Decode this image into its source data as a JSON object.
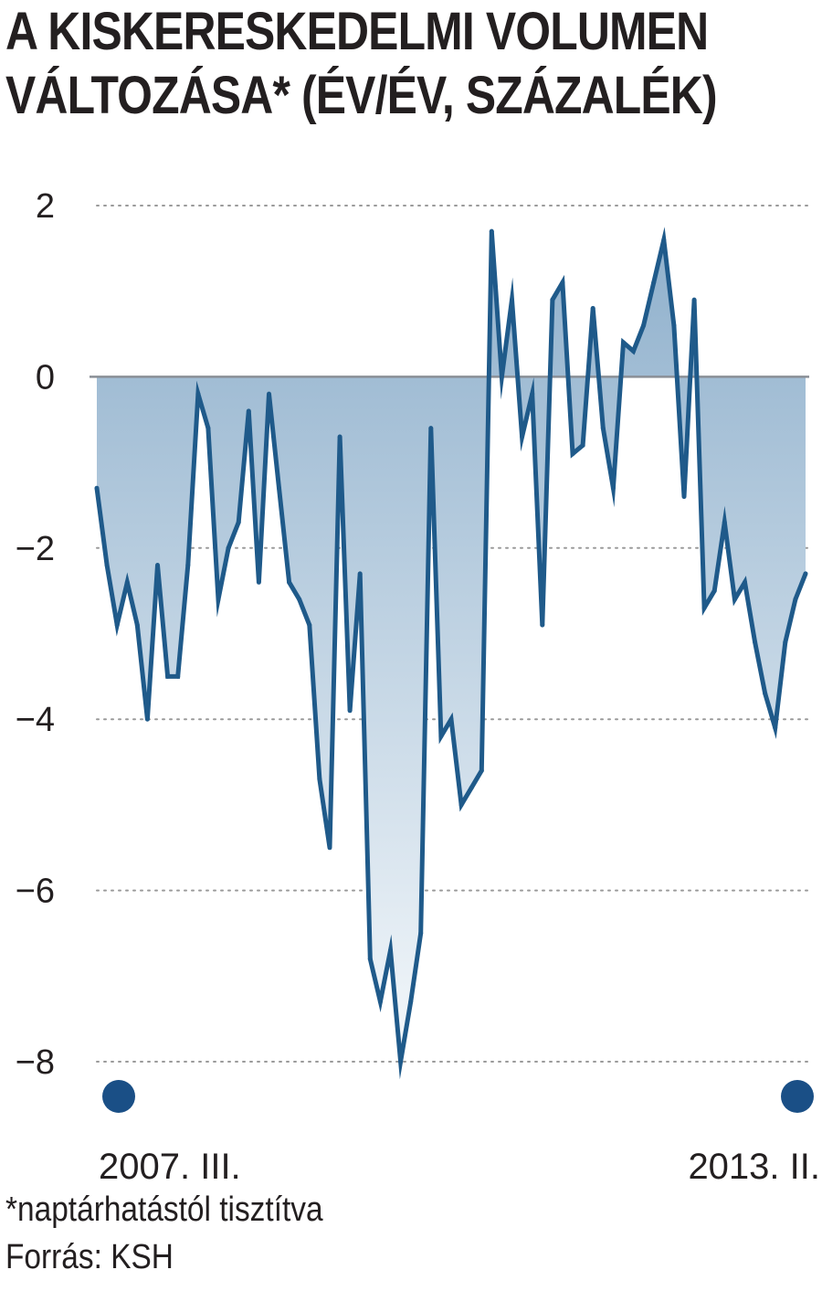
{
  "chart_data": {
    "type": "area",
    "title_lines": [
      "A KISKERESKEDELMI VOLUMEN",
      "VÁLTOZÁSA* (ÉV/ÉV, SZÁZALÉK)"
    ],
    "ylim": [
      -8,
      2
    ],
    "yticks": [
      2,
      0,
      -2,
      -4,
      -6,
      -8
    ],
    "ytick_labels": [
      "2",
      "0",
      "−2",
      "−4",
      "−6",
      "−8"
    ],
    "grid": true,
    "x_start_label": "2007. III.",
    "x_end_label": "2013. II.",
    "values": [
      -1.3,
      -2.2,
      -2.9,
      -2.4,
      -2.9,
      -4.0,
      -2.2,
      -3.5,
      -3.5,
      -2.2,
      -0.2,
      -0.6,
      -2.6,
      -2.0,
      -1.7,
      -0.4,
      -2.4,
      -0.2,
      -1.3,
      -2.4,
      -2.6,
      -2.9,
      -4.7,
      -5.5,
      -0.7,
      -3.9,
      -2.3,
      -6.8,
      -7.3,
      -6.7,
      -8.0,
      -7.3,
      -6.5,
      -0.6,
      -4.2,
      -4.0,
      -5.0,
      -4.8,
      -4.6,
      1.7,
      0.0,
      0.9,
      -0.7,
      -0.2,
      -2.9,
      0.9,
      1.1,
      -0.9,
      -0.8,
      0.8,
      -0.6,
      -1.3,
      0.4,
      0.3,
      0.6,
      1.1,
      1.6,
      0.6,
      -1.4,
      0.9,
      -2.7,
      -2.5,
      -1.7,
      -2.6,
      -2.4,
      -3.1,
      -3.7,
      -4.1,
      -3.1,
      -2.6,
      -2.3
    ],
    "colors": {
      "line": "#1f5a8a",
      "fill_top": "#8fb0cc",
      "fill_bottom": "#f4f8fb",
      "zero_line": "#8a8f96",
      "grid": "#9a9a9a",
      "marker": "#1a4f86"
    }
  },
  "footnote": "*naptárhatástól tisztítva",
  "source": "Forrás: KSH"
}
